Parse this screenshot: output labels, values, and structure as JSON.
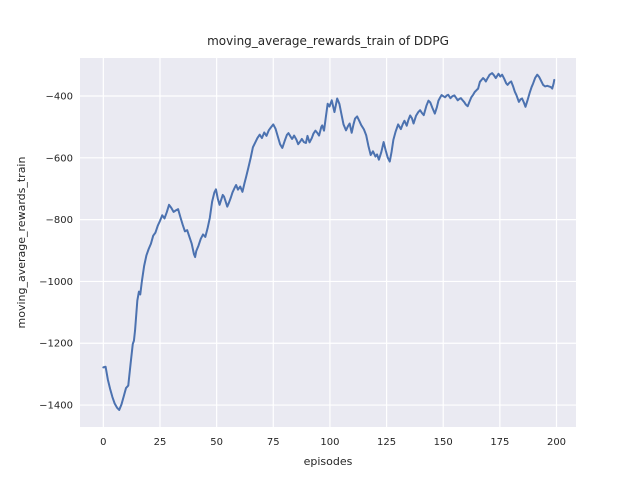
{
  "figure": {
    "background_color": "#ffffff",
    "plot_background_color": "#eaeaf2",
    "grid_color": "#ffffff",
    "text_color": "#262626"
  },
  "chart_data": {
    "type": "line",
    "title": "moving_average_rewards_train of DDPG",
    "xlabel": "episodes",
    "ylabel": "moving_average_rewards_train",
    "grid": true,
    "legend_position": "none",
    "xlim": [
      -10.3,
      208.6
    ],
    "ylim": [
      -1471,
      -277
    ],
    "x_ticks": [
      {
        "value": 0,
        "label": "0"
      },
      {
        "value": 25,
        "label": "25"
      },
      {
        "value": 50,
        "label": "50"
      },
      {
        "value": 75,
        "label": "75"
      },
      {
        "value": 100,
        "label": "100"
      },
      {
        "value": 125,
        "label": "125"
      },
      {
        "value": 150,
        "label": "150"
      },
      {
        "value": 175,
        "label": "175"
      },
      {
        "value": 200,
        "label": "200"
      }
    ],
    "y_ticks": [
      {
        "value": -400,
        "label": "−400"
      },
      {
        "value": -600,
        "label": "−600"
      },
      {
        "value": -800,
        "label": "−800"
      },
      {
        "value": -1000,
        "label": "−1000"
      },
      {
        "value": -1200,
        "label": "−1200"
      },
      {
        "value": -1400,
        "label": "−1400"
      }
    ],
    "series": [
      {
        "name": "moving_average_rewards_train",
        "color": "#4c72b0",
        "line_width": 2,
        "points": [
          [
            0,
            -1278
          ],
          [
            1,
            -1276
          ],
          [
            2,
            -1318
          ],
          [
            3,
            -1348
          ],
          [
            4,
            -1374
          ],
          [
            5,
            -1395
          ],
          [
            6,
            -1408
          ],
          [
            7,
            -1416
          ],
          [
            8,
            -1398
          ],
          [
            9,
            -1372
          ],
          [
            10,
            -1345
          ],
          [
            11,
            -1337
          ],
          [
            12,
            -1268
          ],
          [
            13,
            -1202
          ],
          [
            13.5,
            -1192
          ],
          [
            14,
            -1158
          ],
          [
            15,
            -1062
          ],
          [
            15.7,
            -1033
          ],
          [
            16.3,
            -1042
          ],
          [
            17,
            -1000
          ],
          [
            18,
            -950
          ],
          [
            19,
            -916
          ],
          [
            20,
            -895
          ],
          [
            21,
            -878
          ],
          [
            22,
            -852
          ],
          [
            23,
            -842
          ],
          [
            24,
            -820
          ],
          [
            25,
            -804
          ],
          [
            26,
            -786
          ],
          [
            27,
            -796
          ],
          [
            28,
            -776
          ],
          [
            29,
            -752
          ],
          [
            30,
            -762
          ],
          [
            31,
            -775
          ],
          [
            32,
            -770
          ],
          [
            33,
            -766
          ],
          [
            34,
            -792
          ],
          [
            35,
            -816
          ],
          [
            36,
            -838
          ],
          [
            37,
            -834
          ],
          [
            38,
            -856
          ],
          [
            39,
            -878
          ],
          [
            40,
            -912
          ],
          [
            40.5,
            -921
          ],
          [
            41,
            -902
          ],
          [
            42,
            -884
          ],
          [
            43,
            -862
          ],
          [
            44,
            -848
          ],
          [
            45,
            -856
          ],
          [
            46,
            -828
          ],
          [
            47,
            -794
          ],
          [
            48,
            -742
          ],
          [
            49,
            -712
          ],
          [
            49.7,
            -702
          ],
          [
            50.5,
            -732
          ],
          [
            51.3,
            -752
          ],
          [
            52,
            -736
          ],
          [
            52.7,
            -720
          ],
          [
            53.3,
            -726
          ],
          [
            54,
            -742
          ],
          [
            54.7,
            -758
          ],
          [
            55.5,
            -744
          ],
          [
            56.3,
            -728
          ],
          [
            57,
            -712
          ],
          [
            58,
            -696
          ],
          [
            58.6,
            -688
          ],
          [
            59.4,
            -703
          ],
          [
            60.4,
            -693
          ],
          [
            61.4,
            -710
          ],
          [
            62.3,
            -682
          ],
          [
            63,
            -662
          ],
          [
            64,
            -632
          ],
          [
            65,
            -601
          ],
          [
            66,
            -566
          ],
          [
            67,
            -551
          ],
          [
            68,
            -536
          ],
          [
            69,
            -525
          ],
          [
            70,
            -536
          ],
          [
            71,
            -518
          ],
          [
            72,
            -529
          ],
          [
            73,
            -511
          ],
          [
            74,
            -501
          ],
          [
            75,
            -492
          ],
          [
            76,
            -506
          ],
          [
            77,
            -531
          ],
          [
            78,
            -556
          ],
          [
            79,
            -568
          ],
          [
            80,
            -546
          ],
          [
            81,
            -526
          ],
          [
            81.7,
            -520
          ],
          [
            82.6,
            -531
          ],
          [
            83.3,
            -539
          ],
          [
            84.2,
            -528
          ],
          [
            85.2,
            -541
          ],
          [
            86,
            -556
          ],
          [
            87,
            -546
          ],
          [
            87.6,
            -539
          ],
          [
            88.5,
            -549
          ],
          [
            89.4,
            -552
          ],
          [
            90.1,
            -529
          ],
          [
            91,
            -550
          ],
          [
            92,
            -536
          ],
          [
            92.7,
            -522
          ],
          [
            93.6,
            -512
          ],
          [
            94.6,
            -521
          ],
          [
            95.2,
            -528
          ],
          [
            96.2,
            -500
          ],
          [
            96.6,
            -495
          ],
          [
            97.4,
            -512
          ],
          [
            98.2,
            -468
          ],
          [
            99,
            -425
          ],
          [
            99.8,
            -434
          ],
          [
            100.8,
            -414
          ],
          [
            102,
            -452
          ],
          [
            103.2,
            -408
          ],
          [
            104.2,
            -426
          ],
          [
            105,
            -456
          ],
          [
            106,
            -492
          ],
          [
            107.1,
            -511
          ],
          [
            108,
            -497
          ],
          [
            108.7,
            -489
          ],
          [
            109.6,
            -519
          ],
          [
            110.4,
            -492
          ],
          [
            111.1,
            -473
          ],
          [
            112,
            -466
          ],
          [
            113,
            -481
          ],
          [
            113.8,
            -494
          ],
          [
            115,
            -508
          ],
          [
            116,
            -527
          ],
          [
            117,
            -562
          ],
          [
            118,
            -591
          ],
          [
            119,
            -579
          ],
          [
            120.1,
            -596
          ],
          [
            120.8,
            -589
          ],
          [
            121.6,
            -606
          ],
          [
            122.7,
            -581
          ],
          [
            123.7,
            -549
          ],
          [
            124.6,
            -576
          ],
          [
            125.5,
            -599
          ],
          [
            126.4,
            -612
          ],
          [
            127.2,
            -581
          ],
          [
            128,
            -542
          ],
          [
            129,
            -515
          ],
          [
            130.1,
            -492
          ],
          [
            131.3,
            -507
          ],
          [
            132.2,
            -490
          ],
          [
            132.9,
            -480
          ],
          [
            133.9,
            -496
          ],
          [
            134.6,
            -478
          ],
          [
            135.4,
            -463
          ],
          [
            136.2,
            -472
          ],
          [
            136.9,
            -489
          ],
          [
            138,
            -464
          ],
          [
            139,
            -452
          ],
          [
            139.8,
            -446
          ],
          [
            140.6,
            -455
          ],
          [
            141.4,
            -462
          ],
          [
            142.6,
            -431
          ],
          [
            143.5,
            -415
          ],
          [
            144.3,
            -421
          ],
          [
            145.2,
            -438
          ],
          [
            146.3,
            -457
          ],
          [
            147.2,
            -436
          ],
          [
            147.9,
            -415
          ],
          [
            148.7,
            -404
          ],
          [
            149.3,
            -397
          ],
          [
            150.1,
            -401
          ],
          [
            150.8,
            -404
          ],
          [
            151.6,
            -398
          ],
          [
            152.2,
            -396
          ],
          [
            153.2,
            -407
          ],
          [
            154,
            -401
          ],
          [
            154.9,
            -398
          ],
          [
            155.8,
            -407
          ],
          [
            156.4,
            -414
          ],
          [
            157.2,
            -409
          ],
          [
            157.8,
            -407
          ],
          [
            158.6,
            -414
          ],
          [
            159.3,
            -420
          ],
          [
            160,
            -428
          ],
          [
            160.8,
            -433
          ],
          [
            161.6,
            -418
          ],
          [
            162.4,
            -404
          ],
          [
            163.2,
            -396
          ],
          [
            163.9,
            -387
          ],
          [
            164.7,
            -381
          ],
          [
            165.4,
            -376
          ],
          [
            166.2,
            -354
          ],
          [
            167,
            -347
          ],
          [
            167.6,
            -342
          ],
          [
            168.3,
            -347
          ],
          [
            168.8,
            -353
          ],
          [
            169.6,
            -342
          ],
          [
            170.5,
            -331
          ],
          [
            171.6,
            -326
          ],
          [
            172.4,
            -333
          ],
          [
            173.2,
            -342
          ],
          [
            174.4,
            -328
          ],
          [
            175.2,
            -337
          ],
          [
            176,
            -331
          ],
          [
            176.9,
            -344
          ],
          [
            177.8,
            -359
          ],
          [
            178.4,
            -364
          ],
          [
            179.2,
            -357
          ],
          [
            180,
            -353
          ],
          [
            180.8,
            -368
          ],
          [
            181.6,
            -386
          ],
          [
            182.3,
            -397
          ],
          [
            183.4,
            -419
          ],
          [
            184.1,
            -411
          ],
          [
            184.8,
            -408
          ],
          [
            185.6,
            -421
          ],
          [
            186.3,
            -435
          ],
          [
            187.2,
            -414
          ],
          [
            188.1,
            -391
          ],
          [
            189,
            -371
          ],
          [
            189.7,
            -359
          ],
          [
            190.6,
            -341
          ],
          [
            191.5,
            -331
          ],
          [
            192.3,
            -338
          ],
          [
            193.2,
            -351
          ],
          [
            194.1,
            -364
          ],
          [
            195,
            -369
          ],
          [
            195.9,
            -367
          ],
          [
            196.7,
            -369
          ],
          [
            197.5,
            -371
          ],
          [
            198.1,
            -376
          ],
          [
            198.7,
            -360
          ],
          [
            199,
            -348
          ]
        ]
      }
    ]
  }
}
